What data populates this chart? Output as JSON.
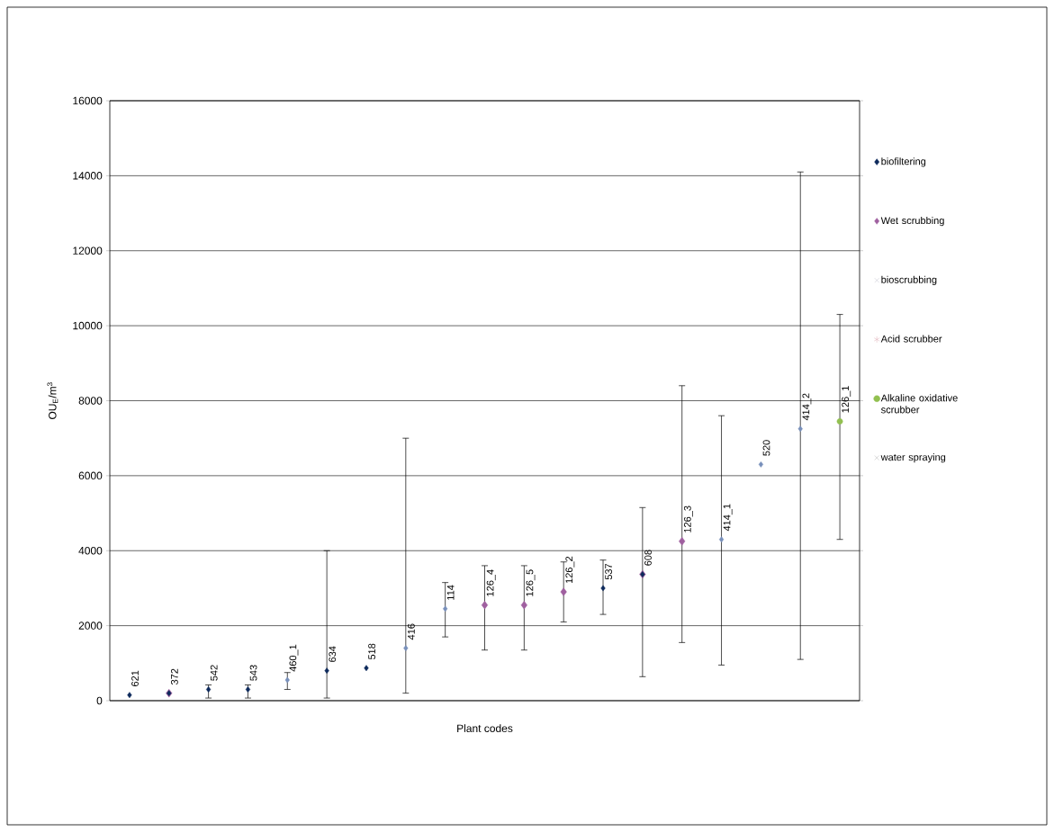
{
  "chart_data": {
    "type": "scatter",
    "xlabel": "Plant codes",
    "ylabel": "OU$_{E}$/m$^{3}$",
    "categories": [
      "621",
      "372",
      "542",
      "543",
      "460_1",
      "634",
      "518",
      "416",
      "114",
      "126_4",
      "126_5",
      "126_2",
      "537",
      "608",
      "126_3",
      "414_1",
      "520",
      "414_2",
      "126_1"
    ],
    "ylim": [
      0,
      16000
    ],
    "yticks": [
      0,
      2000,
      4000,
      6000,
      8000,
      10000,
      12000,
      14000,
      16000
    ],
    "grid": "y",
    "legend": "right",
    "series": [
      {
        "name": "biofiltering",
        "color": "#0e2a5c",
        "marker": "diamond",
        "colors": [
          "#0e2a5c",
          "#0e2a5c",
          "#0e2a5c",
          "#0e2a5c",
          "#7890bb",
          "#0e2a5c",
          "#0e2a5c",
          "#7890bb",
          "#7890bb",
          null,
          null,
          null,
          "#0e2a5c",
          "#0e2a5c",
          null,
          "#7890bb",
          "#7890bb",
          "#7890bb",
          null
        ],
        "values": [
          150,
          200,
          300,
          300,
          550,
          800,
          870,
          1400,
          2450,
          null,
          null,
          null,
          3000,
          3370,
          null,
          4300,
          6300,
          7250,
          null
        ],
        "errors": [
          null,
          null,
          [
            70,
            420
          ],
          [
            70,
            420
          ],
          [
            300,
            750
          ],
          [
            70,
            4000
          ],
          null,
          [
            200,
            7000
          ],
          [
            1700,
            3150
          ],
          null,
          null,
          null,
          [
            2300,
            3750
          ],
          [
            640,
            5150
          ],
          null,
          [
            950,
            7600
          ],
          null,
          [
            1100,
            14100
          ],
          null
        ]
      },
      {
        "name": "Wet scrubbing",
        "color": "#a060a0",
        "marker": "diamond",
        "values": [
          null,
          200,
          null,
          null,
          null,
          null,
          null,
          null,
          null,
          2550,
          2550,
          2900,
          null,
          3370,
          4250,
          null,
          null,
          null,
          null
        ],
        "errors": [
          null,
          null,
          null,
          null,
          null,
          null,
          null,
          null,
          null,
          [
            1350,
            3600
          ],
          [
            1350,
            3600
          ],
          [
            2100,
            3700
          ],
          null,
          null,
          [
            1550,
            8400
          ],
          null,
          null,
          null,
          null
        ]
      },
      {
        "name": "bioscrubbing",
        "color": "#b0b0c0",
        "marker": "cross",
        "values": [
          null,
          null,
          null,
          null,
          null,
          null,
          null,
          null,
          null,
          null,
          null,
          null,
          null,
          null,
          null,
          null,
          null,
          null,
          null
        ]
      },
      {
        "name": "Acid scrubber",
        "color": "#d8a0a8",
        "marker": "star",
        "values": [
          null,
          null,
          null,
          null,
          null,
          null,
          null,
          null,
          null,
          null,
          null,
          null,
          null,
          null,
          null,
          null,
          null,
          null,
          null
        ]
      },
      {
        "name": "Alkaline oxidative scrubber",
        "color": "#92c050",
        "marker": "circle",
        "values": [
          null,
          null,
          null,
          null,
          null,
          null,
          null,
          null,
          null,
          null,
          null,
          null,
          null,
          null,
          null,
          null,
          null,
          null,
          7450
        ],
        "errors": [
          null,
          null,
          null,
          null,
          null,
          null,
          null,
          null,
          null,
          null,
          null,
          null,
          null,
          null,
          null,
          null,
          null,
          null,
          [
            4300,
            10300
          ]
        ]
      },
      {
        "name": "water spraying",
        "color": "#a0a0a0",
        "marker": "cross",
        "values": [
          null,
          null,
          null,
          null,
          null,
          null,
          null,
          null,
          null,
          null,
          null,
          null,
          null,
          null,
          null,
          null,
          null,
          null,
          null
        ]
      }
    ]
  }
}
